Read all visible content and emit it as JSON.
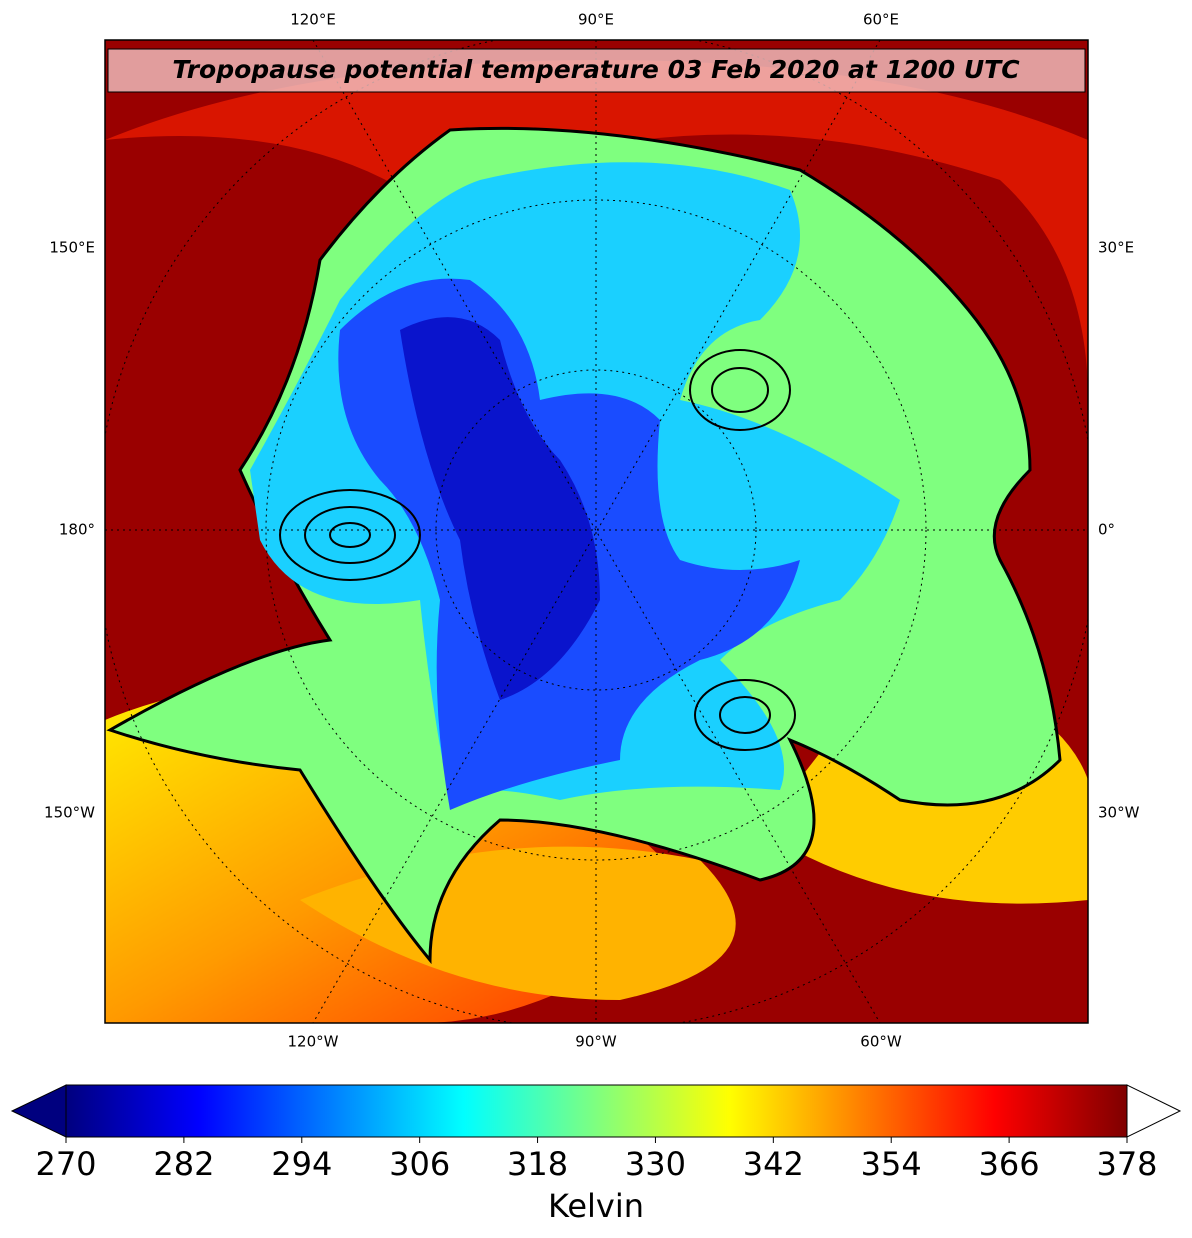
{
  "title": "Tropopause potential temperature 03 Feb 2020 at 1200 UTC",
  "longitude_labels": {
    "top": [
      "120°E",
      "90°E",
      "60°E"
    ],
    "bottom": [
      "120°W",
      "90°W",
      "60°W"
    ]
  },
  "latitude_labels": {
    "left": [
      "150°E",
      "180°",
      "150°W"
    ],
    "right": [
      "30°E",
      "0°",
      "30°W"
    ]
  },
  "colorbar": {
    "label": "Kelvin",
    "limits": [
      270,
      378
    ],
    "ticks": [
      270,
      282,
      294,
      306,
      318,
      330,
      342,
      354,
      366,
      378
    ],
    "colors": [
      "#00007f",
      "#0000ff",
      "#007fff",
      "#00ffff",
      "#7fff7f",
      "#ffff00",
      "#ff7f00",
      "#ff0000",
      "#7f0000"
    ],
    "under_color": "#00007f",
    "over_color": "#ffffff"
  }
}
